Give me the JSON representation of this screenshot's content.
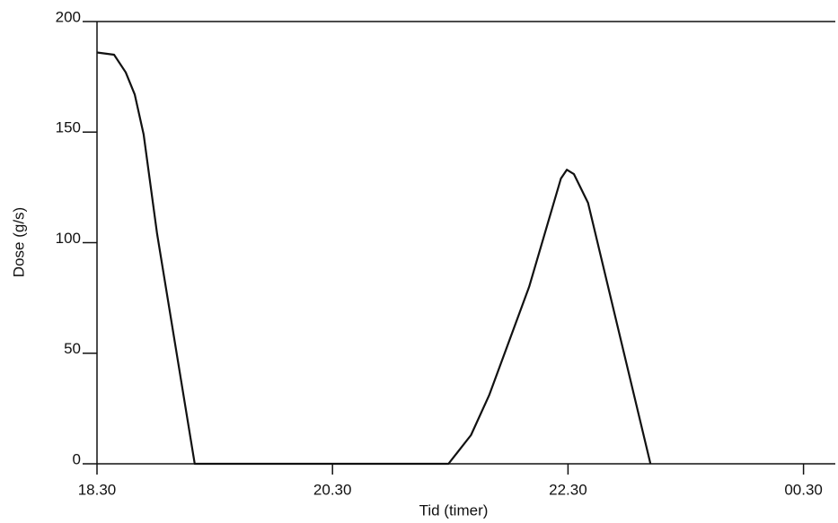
{
  "chart_data": {
    "type": "line",
    "xlabel": "Tid (timer)",
    "ylabel": "Dose (g/s)",
    "x": [
      18.5,
      18.645,
      18.744,
      18.82,
      18.896,
      19.01,
      19.33,
      21.485,
      21.676,
      21.83,
      22.17,
      22.44,
      22.49,
      22.55,
      22.67,
      23.2
    ],
    "values": [
      186,
      185,
      177,
      167,
      149,
      104,
      0,
      0,
      13,
      31,
      80,
      129,
      133,
      131,
      118,
      0
    ],
    "color": "#111111",
    "xlim": [
      18.5,
      24.77
    ],
    "xticks": [
      {
        "value": 18.5,
        "label": "18.30"
      },
      {
        "value": 20.5,
        "label": "20.30"
      },
      {
        "value": 22.5,
        "label": "22.30"
      },
      {
        "value": 24.5,
        "label": "00.30"
      }
    ],
    "ylim": [
      0,
      200
    ],
    "yticks": [
      0,
      50,
      100,
      150,
      200
    ]
  }
}
